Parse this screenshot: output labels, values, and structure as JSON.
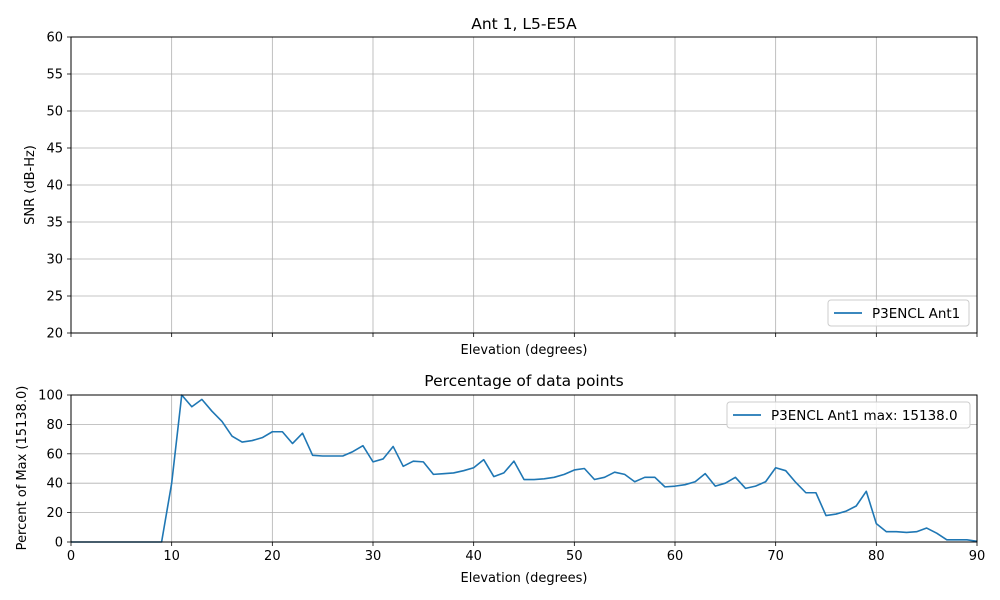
{
  "chart_data": [
    {
      "type": "line",
      "title": "Ant 1, L5-E5A",
      "xlabel": "Elevation (degrees)",
      "ylabel": "SNR (dB-Hz)",
      "xlim": [
        0,
        90
      ],
      "ylim": [
        20,
        60
      ],
      "xticks": [
        0,
        10,
        20,
        30,
        40,
        50,
        60,
        70,
        80,
        90
      ],
      "yticks": [
        20,
        25,
        30,
        35,
        40,
        45,
        50,
        55,
        60
      ],
      "show_x_tick_labels": false,
      "grid": true,
      "legend_position": "lower-right",
      "series": [
        {
          "name": "P3ENCL Ant1",
          "color": "#1f77b4",
          "x": [],
          "y": []
        }
      ]
    },
    {
      "type": "line",
      "title": "Percentage of data points",
      "xlabel": "Elevation (degrees)",
      "ylabel": "Percent of Max (15138.0)",
      "xlim": [
        0,
        90
      ],
      "ylim": [
        0,
        100
      ],
      "xticks": [
        0,
        10,
        20,
        30,
        40,
        50,
        60,
        70,
        80,
        90
      ],
      "yticks": [
        0,
        20,
        40,
        60,
        80,
        100
      ],
      "show_x_tick_labels": true,
      "grid": true,
      "legend_position": "upper-right",
      "series": [
        {
          "name": "P3ENCL Ant1 max: 15138.0",
          "color": "#1f77b4",
          "x": [
            0,
            1,
            2,
            3,
            4,
            5,
            6,
            7,
            8,
            9,
            10,
            11,
            12,
            13,
            14,
            15,
            16,
            17,
            18,
            19,
            20,
            21,
            22,
            23,
            24,
            25,
            26,
            27,
            28,
            29,
            30,
            31,
            32,
            33,
            34,
            35,
            36,
            37,
            38,
            39,
            40,
            41,
            42,
            43,
            44,
            45,
            46,
            47,
            48,
            49,
            50,
            51,
            52,
            53,
            54,
            55,
            56,
            57,
            58,
            59,
            60,
            61,
            62,
            63,
            64,
            65,
            66,
            67,
            68,
            69,
            70,
            71,
            72,
            73,
            74,
            75,
            76,
            77,
            78,
            79,
            80,
            81,
            82,
            83,
            84,
            85,
            86,
            87,
            88,
            89,
            90
          ],
          "y": [
            0,
            0,
            0,
            0,
            0,
            0,
            0,
            0,
            0,
            0,
            40,
            100,
            92,
            97,
            89,
            82,
            72,
            68,
            69,
            71,
            75,
            75,
            67,
            74,
            59,
            58.5,
            58.5,
            58.5,
            61.5,
            65.5,
            54.5,
            56.5,
            65,
            51.5,
            55,
            54.5,
            46,
            46.5,
            47,
            48.5,
            50.5,
            56,
            44.5,
            47,
            55,
            42.5,
            42.5,
            43,
            44,
            46,
            49,
            50,
            42.5,
            44,
            47.5,
            46,
            41,
            44,
            44,
            37.5,
            38,
            39,
            41,
            46.5,
            38,
            40,
            44,
            36.5,
            38,
            41,
            50.5,
            48.5,
            40.5,
            33.5,
            33.5,
            18,
            19,
            21,
            24.5,
            34.5,
            12.5,
            7,
            7,
            6.5,
            7,
            9.5,
            6,
            1.5,
            1.5,
            1.5,
            0.5
          ]
        }
      ]
    }
  ]
}
